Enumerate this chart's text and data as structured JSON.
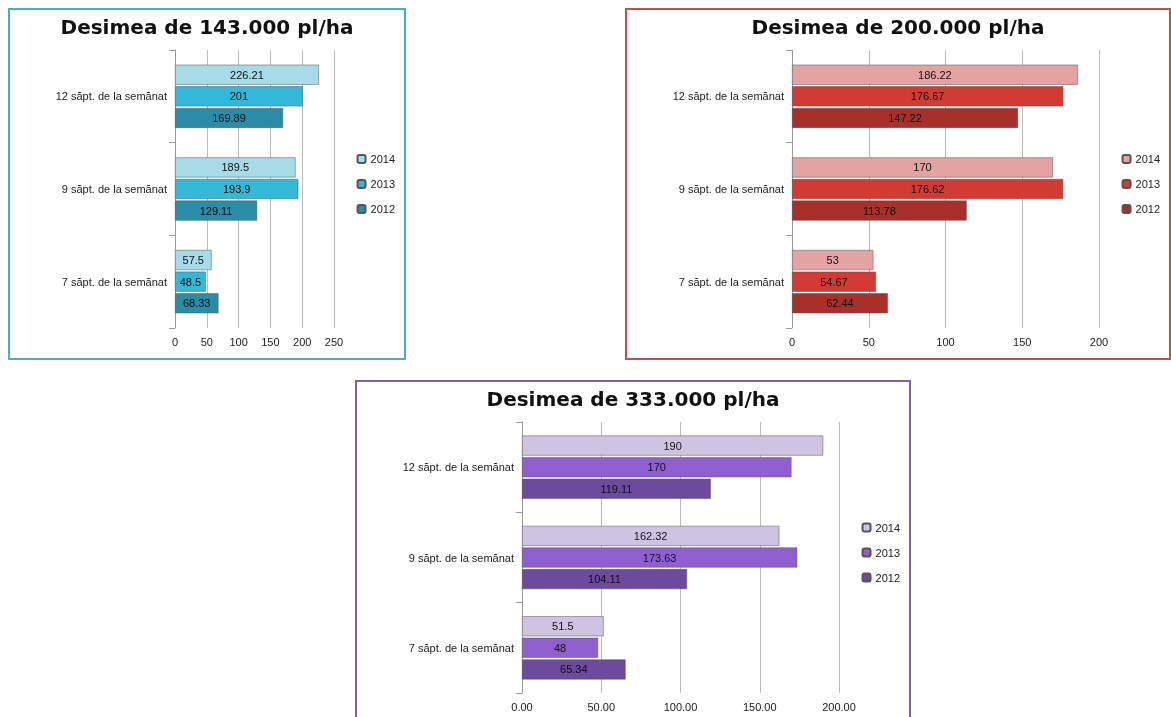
{
  "chart_data": [
    {
      "type": "bar",
      "orientation": "horizontal",
      "title": "Desimea de 143.000 pl/ha",
      "categories": [
        "12 săpt. de la semănat",
        "9 săpt. de la semănat",
        "7 săpt. de la semănat"
      ],
      "series": [
        {
          "name": "2014",
          "color": "#a8dbe8",
          "values": [
            226.21,
            189.5,
            57.5
          ]
        },
        {
          "name": "2013",
          "color": "#33b8d8",
          "values": [
            201,
            193.9,
            48.5
          ]
        },
        {
          "name": "2012",
          "color": "#2a8ca6",
          "values": [
            169.89,
            129.11,
            68.33
          ]
        }
      ],
      "xlim": [
        0,
        250
      ],
      "xticks": [
        0,
        50,
        100,
        150,
        200,
        250
      ],
      "grid": "x",
      "legend": "right",
      "data_labels": true
    },
    {
      "type": "bar",
      "orientation": "horizontal",
      "title": "Desimea de 200.000 pl/ha",
      "categories": [
        "12 săpt. de la semănat",
        "9 săpt. de la semănat",
        "7 săpt. de la semănat"
      ],
      "series": [
        {
          "name": "2014",
          "color": "#e3a3a3",
          "values": [
            186.22,
            170,
            53
          ]
        },
        {
          "name": "2013",
          "color": "#d13b34",
          "values": [
            176.67,
            176.62,
            54.67
          ]
        },
        {
          "name": "2012",
          "color": "#a8302b",
          "values": [
            147.22,
            113.78,
            62.44
          ]
        }
      ],
      "xlim": [
        0,
        200
      ],
      "xticks": [
        0,
        50,
        100,
        150,
        200
      ],
      "grid": "x",
      "legend": "right",
      "data_labels": true
    },
    {
      "type": "bar",
      "orientation": "horizontal",
      "title": "Desimea de 333.000 pl/ha",
      "categories": [
        "12 săpt. de la semănat",
        "9 săpt. de la semănat",
        "7 săpt. de la semănat"
      ],
      "series": [
        {
          "name": "2014",
          "color": "#cfc3e3",
          "values": [
            190,
            162.32,
            51.5
          ]
        },
        {
          "name": "2013",
          "color": "#8f5fcf",
          "values": [
            170,
            173.63,
            48
          ]
        },
        {
          "name": "2012",
          "color": "#6c4a9e",
          "values": [
            119.11,
            104.11,
            65.34
          ]
        }
      ],
      "xlim": [
        0,
        200
      ],
      "xticks": [
        {
          "value": 0,
          "label": "0.00"
        },
        {
          "value": 50,
          "label": "50.00"
        },
        {
          "value": 100,
          "label": "100.00"
        },
        {
          "value": 150,
          "label": "150.00"
        },
        {
          "value": 200,
          "label": "200.00"
        }
      ],
      "grid": "x",
      "legend": "right",
      "data_labels": true
    }
  ]
}
